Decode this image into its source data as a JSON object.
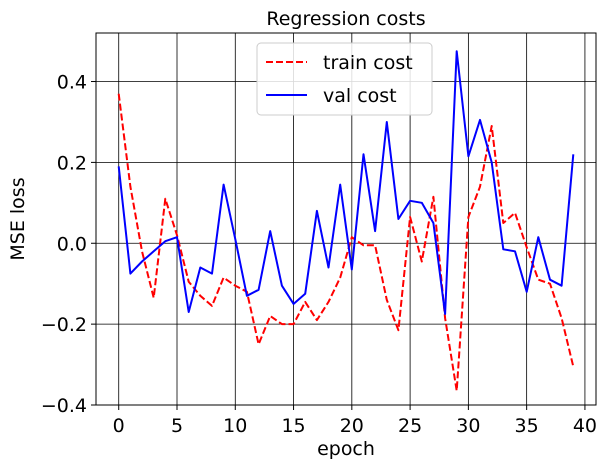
{
  "chart_data": {
    "type": "line",
    "title": "Regression costs",
    "xlabel": "epoch",
    "ylabel": "MSE loss",
    "xlim": [
      -1.95,
      40.95
    ],
    "ylim": [
      -0.4,
      0.52
    ],
    "xticks": [
      0,
      5,
      10,
      15,
      20,
      25,
      30,
      35,
      40
    ],
    "yticks": [
      -0.4,
      -0.2,
      0.0,
      0.2,
      0.4
    ],
    "xtick_labels": [
      "0",
      "5",
      "10",
      "15",
      "20",
      "25",
      "30",
      "35",
      "40"
    ],
    "ytick_labels": [
      "−0.4",
      "−0.2",
      "0.0",
      "0.2",
      "0.4"
    ],
    "grid": true,
    "legend_position": "upper-center",
    "x": [
      0,
      1,
      2,
      3,
      4,
      5,
      6,
      7,
      8,
      9,
      10,
      11,
      12,
      13,
      14,
      15,
      16,
      17,
      18,
      19,
      20,
      21,
      22,
      23,
      24,
      25,
      26,
      27,
      28,
      29,
      30,
      31,
      32,
      33,
      34,
      35,
      36,
      37,
      38,
      39
    ],
    "series": [
      {
        "name": "train cost",
        "color": "#ff0000",
        "style": "dashed",
        "values": [
          0.37,
          0.14,
          -0.02,
          -0.135,
          0.11,
          0.02,
          -0.095,
          -0.13,
          -0.155,
          -0.085,
          -0.105,
          -0.12,
          -0.25,
          -0.18,
          -0.2,
          -0.2,
          -0.145,
          -0.19,
          -0.145,
          -0.085,
          0.015,
          -0.005,
          -0.005,
          -0.14,
          -0.215,
          0.065,
          -0.045,
          0.115,
          -0.185,
          -0.365,
          0.065,
          0.14,
          0.29,
          0.05,
          0.075,
          -0.01,
          -0.09,
          -0.1,
          -0.185,
          -0.305
        ]
      },
      {
        "name": "val cost",
        "color": "#0000ff",
        "style": "solid",
        "values": [
          0.19,
          -0.075,
          -0.045,
          -0.02,
          0.005,
          0.015,
          -0.17,
          -0.06,
          -0.075,
          0.145,
          0.01,
          -0.13,
          -0.115,
          0.03,
          -0.105,
          -0.15,
          -0.125,
          0.08,
          -0.06,
          0.145,
          -0.065,
          0.22,
          0.03,
          0.3,
          0.06,
          0.105,
          0.1,
          0.05,
          -0.175,
          0.475,
          0.215,
          0.305,
          0.2,
          -0.015,
          -0.02,
          -0.12,
          0.015,
          -0.09,
          -0.105,
          0.22
        ]
      }
    ]
  }
}
